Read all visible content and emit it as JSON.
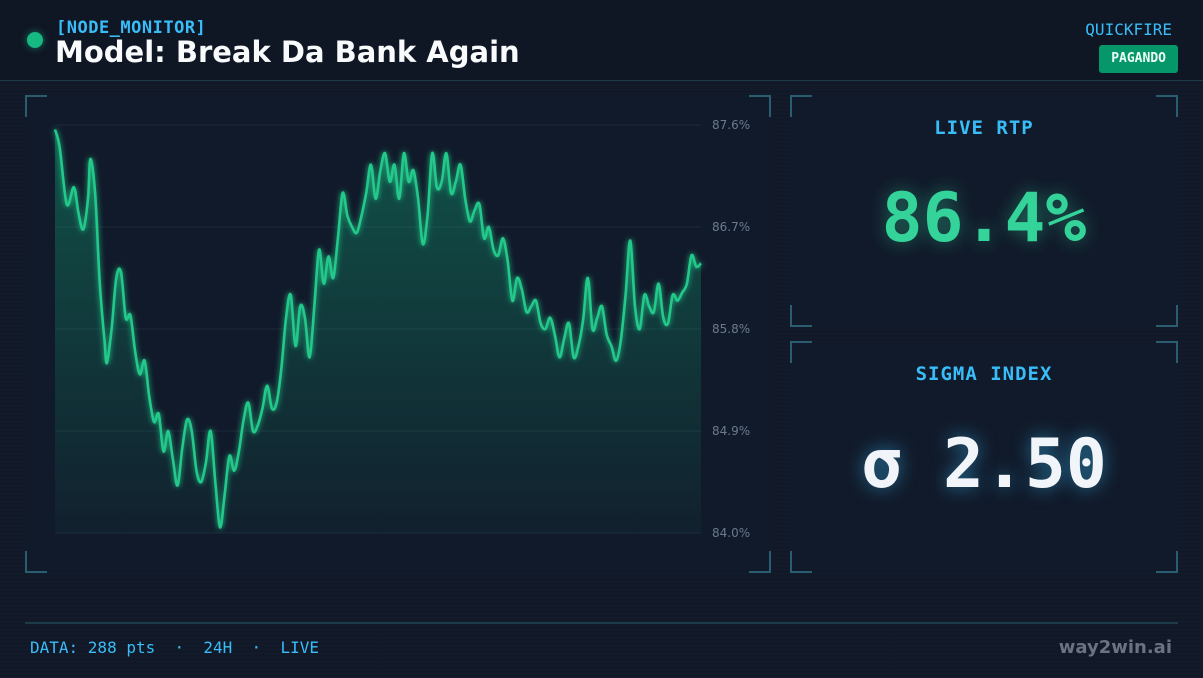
{
  "header": {
    "node_tag": "[NODE_MONITOR]",
    "title": "Model: Break Da Bank Again",
    "provider": "QUICKFIRE",
    "status_badge": "PAGANDO"
  },
  "stats": {
    "rtp_label": "LIVE RTP",
    "rtp_value": "86.4%",
    "sigma_label": "SIGMA INDEX",
    "sigma_value": "σ 2.50"
  },
  "footer": {
    "info": "DATA: 288 pts  ·  24H  ·  LIVE",
    "brand": "way2win.ai"
  },
  "colors": {
    "line": "#22c98a",
    "accent": "#38bdf8",
    "badge": "#059669"
  },
  "chart_data": {
    "type": "area",
    "ylim": [
      84.0,
      87.6
    ],
    "yticks": [
      "87.6%",
      "86.7%",
      "85.8%",
      "84.9%",
      "84.0%"
    ],
    "y_tick_values": [
      87.6,
      86.7,
      85.8,
      84.9,
      84.0
    ],
    "grid": true,
    "points": 288,
    "keypoints": [
      [
        0,
        87.56
      ],
      [
        2,
        87.4
      ],
      [
        5,
        86.9
      ],
      [
        8,
        87.05
      ],
      [
        10,
        86.82
      ],
      [
        12,
        86.68
      ],
      [
        14,
        86.95
      ],
      [
        15,
        87.3
      ],
      [
        17,
        87.0
      ],
      [
        19,
        86.2
      ],
      [
        21,
        85.7
      ],
      [
        22,
        85.5
      ],
      [
        24,
        85.8
      ],
      [
        26,
        86.25
      ],
      [
        28,
        86.3
      ],
      [
        30,
        85.9
      ],
      [
        32,
        85.92
      ],
      [
        34,
        85.6
      ],
      [
        36,
        85.4
      ],
      [
        38,
        85.52
      ],
      [
        40,
        85.2
      ],
      [
        42,
        84.98
      ],
      [
        44,
        85.05
      ],
      [
        46,
        84.72
      ],
      [
        48,
        84.9
      ],
      [
        50,
        84.65
      ],
      [
        52,
        84.42
      ],
      [
        54,
        84.75
      ],
      [
        56,
        85.0
      ],
      [
        58,
        84.9
      ],
      [
        60,
        84.55
      ],
      [
        62,
        84.45
      ],
      [
        64,
        84.62
      ],
      [
        66,
        84.9
      ],
      [
        68,
        84.45
      ],
      [
        70,
        84.05
      ],
      [
        72,
        84.35
      ],
      [
        74,
        84.68
      ],
      [
        76,
        84.55
      ],
      [
        78,
        84.72
      ],
      [
        80,
        85.0
      ],
      [
        82,
        85.15
      ],
      [
        84,
        84.9
      ],
      [
        86,
        84.95
      ],
      [
        88,
        85.1
      ],
      [
        90,
        85.3
      ],
      [
        92,
        85.1
      ],
      [
        94,
        85.15
      ],
      [
        96,
        85.45
      ],
      [
        98,
        85.9
      ],
      [
        100,
        86.1
      ],
      [
        102,
        85.65
      ],
      [
        104,
        86.0
      ],
      [
        106,
        85.9
      ],
      [
        108,
        85.55
      ],
      [
        110,
        86.0
      ],
      [
        112,
        86.5
      ],
      [
        114,
        86.2
      ],
      [
        116,
        86.44
      ],
      [
        118,
        86.25
      ],
      [
        120,
        86.6
      ],
      [
        122,
        87.0
      ],
      [
        124,
        86.8
      ],
      [
        126,
        86.7
      ],
      [
        128,
        86.65
      ],
      [
        130,
        86.8
      ],
      [
        132,
        87.0
      ],
      [
        134,
        87.25
      ],
      [
        136,
        86.95
      ],
      [
        138,
        87.2
      ],
      [
        140,
        87.35
      ],
      [
        142,
        87.1
      ],
      [
        144,
        87.25
      ],
      [
        146,
        86.95
      ],
      [
        148,
        87.35
      ],
      [
        150,
        87.1
      ],
      [
        152,
        87.2
      ],
      [
        154,
        86.95
      ],
      [
        156,
        86.55
      ],
      [
        158,
        86.8
      ],
      [
        160,
        87.35
      ],
      [
        162,
        87.05
      ],
      [
        164,
        87.1
      ],
      [
        166,
        87.35
      ],
      [
        168,
        87.0
      ],
      [
        170,
        87.1
      ],
      [
        172,
        87.25
      ],
      [
        174,
        86.95
      ],
      [
        176,
        86.75
      ],
      [
        178,
        86.85
      ],
      [
        180,
        86.9
      ],
      [
        182,
        86.6
      ],
      [
        184,
        86.7
      ],
      [
        186,
        86.5
      ],
      [
        188,
        86.45
      ],
      [
        190,
        86.6
      ],
      [
        192,
        86.4
      ],
      [
        194,
        86.05
      ],
      [
        196,
        86.25
      ],
      [
        198,
        86.15
      ],
      [
        200,
        85.95
      ],
      [
        202,
        86.0
      ],
      [
        204,
        86.05
      ],
      [
        206,
        85.85
      ],
      [
        208,
        85.8
      ],
      [
        210,
        85.9
      ],
      [
        212,
        85.75
      ],
      [
        214,
        85.55
      ],
      [
        216,
        85.72
      ],
      [
        218,
        85.85
      ],
      [
        220,
        85.55
      ],
      [
        222,
        85.65
      ],
      [
        224,
        85.88
      ],
      [
        226,
        86.25
      ],
      [
        228,
        85.8
      ],
      [
        230,
        85.9
      ],
      [
        232,
        86.0
      ],
      [
        234,
        85.75
      ],
      [
        236,
        85.65
      ],
      [
        238,
        85.52
      ],
      [
        240,
        85.7
      ],
      [
        242,
        86.1
      ],
      [
        244,
        86.58
      ],
      [
        246,
        86.0
      ],
      [
        248,
        85.8
      ],
      [
        250,
        86.1
      ],
      [
        252,
        86.0
      ],
      [
        254,
        85.95
      ],
      [
        256,
        86.2
      ],
      [
        258,
        85.9
      ],
      [
        260,
        85.85
      ],
      [
        262,
        86.1
      ],
      [
        264,
        86.05
      ],
      [
        266,
        86.12
      ],
      [
        268,
        86.2
      ],
      [
        270,
        86.45
      ],
      [
        272,
        86.35
      ],
      [
        274,
        86.38
      ]
    ]
  }
}
